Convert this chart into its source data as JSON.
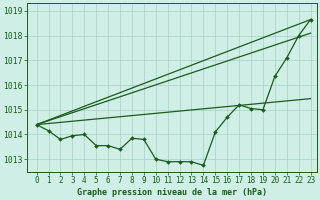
{
  "title": "Graphe pression niveau de la mer (hPa)",
  "background_color": "#ceeee6",
  "grid_color": "#a8cfc4",
  "line_color": "#1a5c1a",
  "x_ticks": [
    0,
    1,
    2,
    3,
    4,
    5,
    6,
    7,
    8,
    9,
    10,
    11,
    12,
    13,
    14,
    15,
    16,
    17,
    18,
    19,
    20,
    21,
    22,
    23
  ],
  "ylim": [
    1012.5,
    1019.3
  ],
  "yticks": [
    1013,
    1014,
    1015,
    1016,
    1017,
    1018,
    1019
  ],
  "main_series": [
    1014.4,
    1014.15,
    1013.8,
    1013.95,
    1014.0,
    1013.55,
    1013.55,
    1013.4,
    1013.85,
    1013.8,
    1013.0,
    1012.9,
    1012.9,
    1012.9,
    1012.75,
    1014.1,
    1014.7,
    1015.2,
    1015.05,
    1015.0,
    1016.35,
    1017.1,
    1018.0,
    1018.65
  ],
  "straight_lines": [
    {
      "x": [
        0,
        23
      ],
      "y": [
        1014.4,
        1018.65
      ]
    },
    {
      "x": [
        0,
        23
      ],
      "y": [
        1014.4,
        1018.1
      ]
    },
    {
      "x": [
        0,
        23
      ],
      "y": [
        1014.4,
        1015.45
      ]
    }
  ],
  "title_fontsize": 6.0,
  "tick_fontsize": 5.5
}
